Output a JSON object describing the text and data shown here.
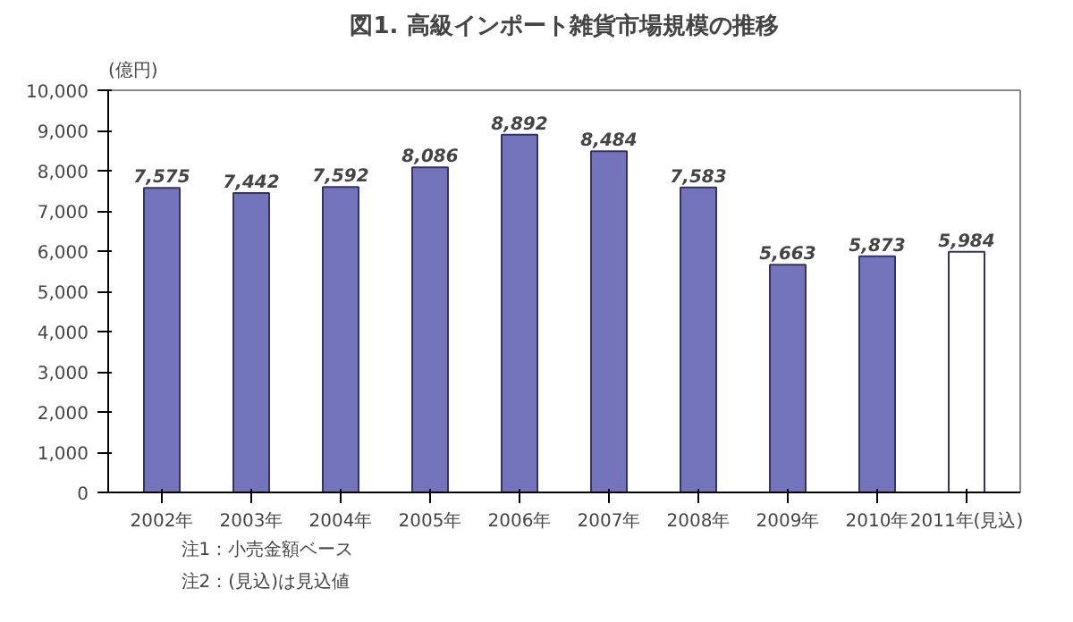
{
  "chart_data": {
    "type": "bar",
    "title": "図1. 高級インポート雑貨市場規模の推移",
    "ylabel": "(億円)",
    "categories": [
      "2002年",
      "2003年",
      "2004年",
      "2005年",
      "2006年",
      "2007年",
      "2008年",
      "2009年",
      "2010年",
      "2011年(見込)"
    ],
    "values": [
      7575,
      7442,
      7592,
      8086,
      8892,
      8484,
      7583,
      5663,
      5873,
      5984
    ],
    "value_labels": [
      "7,575",
      "7,442",
      "7,592",
      "8,086",
      "8,892",
      "8,484",
      "7,583",
      "5,663",
      "5,873",
      "5,984"
    ],
    "colors": [
      "#7474bc",
      "#7474bc",
      "#7474bc",
      "#7474bc",
      "#7474bc",
      "#7474bc",
      "#7474bc",
      "#7474bc",
      "#7474bc",
      "#ffffff"
    ],
    "ylim": [
      0,
      10000
    ],
    "yticks": [
      {
        "value": 0,
        "label": "0"
      },
      {
        "value": 1000,
        "label": "1,000"
      },
      {
        "value": 2000,
        "label": "2,000"
      },
      {
        "value": 3000,
        "label": "3,000"
      },
      {
        "value": 4000,
        "label": "4,000"
      },
      {
        "value": 5000,
        "label": "5,000"
      },
      {
        "value": 6000,
        "label": "6,000"
      },
      {
        "value": 7000,
        "label": "7,000"
      },
      {
        "value": 8000,
        "label": "8,000"
      },
      {
        "value": 9000,
        "label": "9,000"
      },
      {
        "value": 10000,
        "label": "10,000"
      }
    ],
    "grid": false,
    "annotations": [
      "注1：小売金額ベース",
      "注2：(見込)は見込値"
    ]
  }
}
